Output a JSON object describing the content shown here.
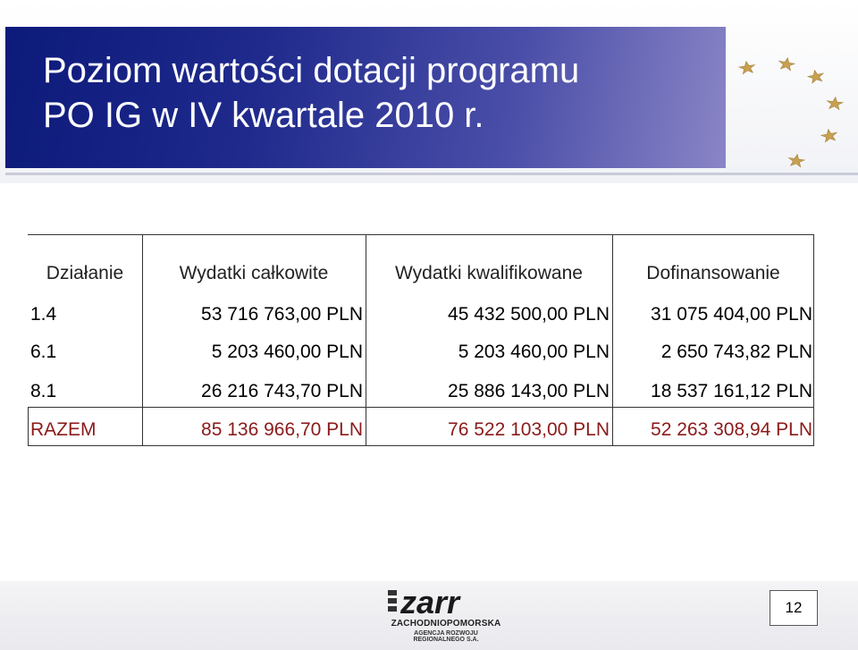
{
  "title": {
    "line1": "Poziom wartości dotacji programu",
    "line2": "PO IG w IV kwartale 2010 r."
  },
  "table": {
    "headers": [
      "Działanie",
      "Wydatki całkowite",
      "Wydatki kwalifikowane",
      "Dofinansowanie"
    ],
    "rows": [
      [
        "1.4",
        "53 716 763,00 PLN",
        "45 432 500,00 PLN",
        "31 075 404,00 PLN"
      ],
      [
        "6.1",
        "5 203 460,00 PLN",
        "5 203 460,00 PLN",
        "2 650 743,82 PLN"
      ],
      [
        "8.1",
        "26 216 743,70 PLN",
        "25 886 143,00 PLN",
        "18 537 161,12 PLN"
      ]
    ],
    "total": [
      "RAZEM",
      "85 136 966,70 PLN",
      "76 522 103,00 PLN",
      "52 263 308,94 PLN"
    ]
  },
  "footer": {
    "logo_main": "zarr",
    "logo_line1": "ZACHODNIOPOMORSKA",
    "logo_line2": "AGENCJA ROZWOJU REGIONALNEGO S.A.",
    "page_number": "12"
  },
  "colors": {
    "title_band": "#1f2a8c",
    "total_text": "#8b1a1a",
    "star": "#c8a050"
  },
  "icons": [
    "eu-stars-icon",
    "zarr-logo"
  ]
}
